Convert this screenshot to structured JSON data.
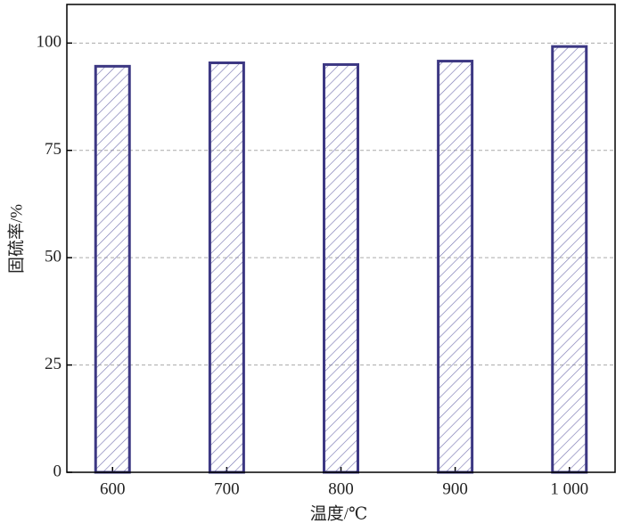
{
  "chart_data": {
    "type": "bar",
    "x_label": "温度/℃",
    "y_label": "固硫率/%",
    "categories": [
      "600",
      "700",
      "800",
      "900",
      "1 000"
    ],
    "values": [
      94.6,
      95.4,
      95.0,
      95.8,
      99.2
    ],
    "color": "#3d3883",
    "hatch_color": "#7b79b3",
    "ylim": [
      0,
      109
    ],
    "yticks": [
      0,
      25,
      50,
      75,
      100
    ],
    "grid": true
  }
}
